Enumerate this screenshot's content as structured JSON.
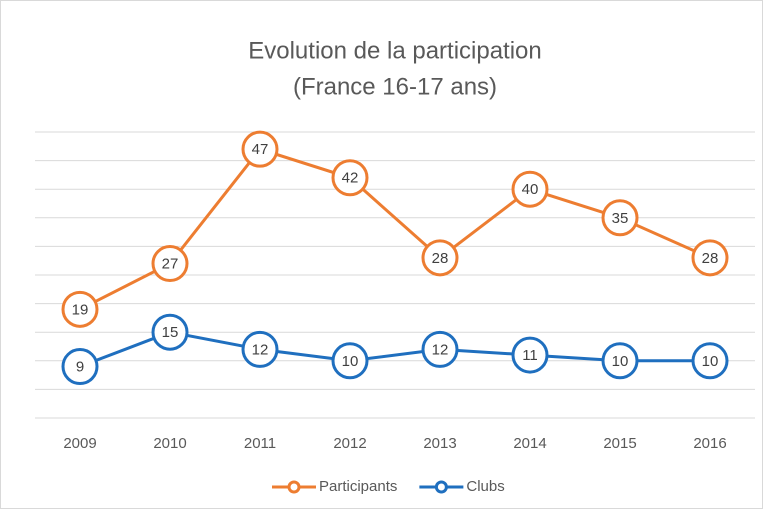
{
  "chart_data": {
    "type": "line",
    "title": "Evolution de la participation",
    "subtitle": "(France 16-17 ans)",
    "categories": [
      "2009",
      "2010",
      "2011",
      "2012",
      "2013",
      "2014",
      "2015",
      "2016"
    ],
    "series": [
      {
        "name": "Participants",
        "color": "#ed7d31",
        "values": [
          19,
          27,
          47,
          42,
          28,
          40,
          35,
          28
        ]
      },
      {
        "name": "Clubs",
        "color": "#1f6fbf",
        "values": [
          9,
          15,
          12,
          10,
          12,
          11,
          10,
          10
        ]
      }
    ],
    "ylim": [
      0,
      50
    ],
    "yticks": [
      0,
      5,
      10,
      15,
      20,
      25,
      30,
      35,
      40,
      45,
      50
    ],
    "grid": true,
    "legend": "bottom"
  }
}
